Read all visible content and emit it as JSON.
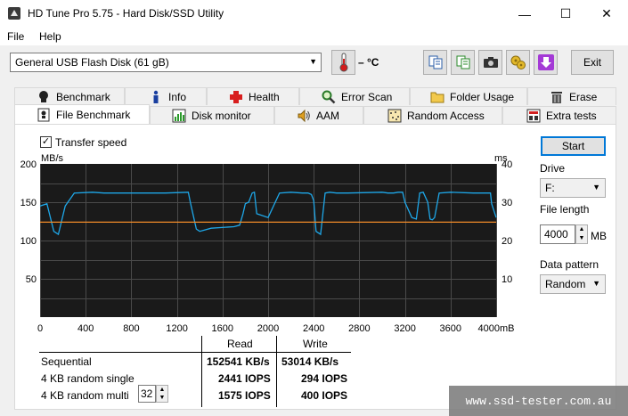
{
  "window": {
    "title": "HD Tune Pro 5.75 - Hard Disk/SSD Utility",
    "minimize": "—",
    "maximize": "☐",
    "close": "✕"
  },
  "menu": {
    "file": "File",
    "help": "Help"
  },
  "toolbar": {
    "drive": "General USB Flash Disk (61 gB)",
    "temperature": "– °C",
    "exit_label": "Exit"
  },
  "tabs_row1": [
    "Benchmark",
    "Info",
    "Health",
    "Error Scan",
    "Folder Usage",
    "Erase"
  ],
  "tabs_row2": [
    "File Benchmark",
    "Disk monitor",
    "AAM",
    "Random Access",
    "Extra tests"
  ],
  "active_tab": "File Benchmark",
  "controls": {
    "transfer_speed_label": "Transfer speed",
    "transfer_speed_checked": true,
    "start_label": "Start",
    "drive_label": "Drive",
    "drive_value": "F:",
    "file_length_label": "File length",
    "file_length_value": "4000",
    "file_length_unit": "MB",
    "data_pattern_label": "Data pattern",
    "data_pattern_value": "Random"
  },
  "chart_data": {
    "type": "line",
    "y_left_unit": "MB/s",
    "y_right_unit": "ms",
    "x_unit": "mB",
    "ylim_left": [
      0,
      200
    ],
    "ylim_right": [
      0,
      40
    ],
    "xlim": [
      0,
      4000
    ],
    "y_left_ticks": [
      50,
      100,
      150,
      200
    ],
    "y_right_ticks": [
      10,
      20,
      30,
      40
    ],
    "x_ticks": [
      0,
      400,
      800,
      1200,
      1600,
      2000,
      2400,
      2800,
      3200,
      3600,
      4000
    ],
    "grid": true,
    "series": [
      {
        "color": "#1ea7e8",
        "x": [
          0,
          60,
          120,
          160,
          220,
          300,
          460,
          560,
          1100,
          1300,
          1320,
          1370,
          1400,
          1500,
          1700,
          1750,
          1780,
          1800,
          1830,
          1860,
          1880,
          1900,
          2000,
          2100,
          2200,
          2300,
          2350,
          2380,
          2400,
          2420,
          2460,
          2500,
          2540,
          2600,
          2700,
          3000,
          3050,
          3100,
          3140,
          3180,
          3200,
          3260,
          3300,
          3330,
          3360,
          3400,
          3420,
          3440,
          3460,
          3500,
          3600,
          3800,
          3950,
          3960,
          4000
        ],
        "values": [
          145,
          148,
          112,
          108,
          145,
          162,
          163,
          162,
          162,
          163,
          148,
          115,
          112,
          116,
          118,
          120,
          135,
          148,
          150,
          162,
          163,
          135,
          130,
          162,
          163,
          162,
          162,
          160,
          152,
          112,
          108,
          162,
          163,
          162,
          162,
          163,
          162,
          162,
          163,
          163,
          150,
          130,
          128,
          162,
          163,
          150,
          128,
          127,
          130,
          162,
          163,
          162,
          162,
          148,
          130
        ]
      },
      {
        "color": "#f28c28",
        "x": [
          0,
          4000
        ],
        "values": [
          124,
          124
        ]
      }
    ]
  },
  "results": {
    "col_read": "Read",
    "col_write": "Write",
    "rows": [
      {
        "label": "Sequential",
        "read": "152541 KB/s",
        "write": "53014 KB/s"
      },
      {
        "label": "4 KB random single",
        "read": "2441 IOPS",
        "write": "294 IOPS"
      },
      {
        "label": "4 KB random multi",
        "read": "1575 IOPS",
        "write": "400 IOPS"
      }
    ],
    "queue_depth": "32"
  },
  "watermark": "www.ssd-tester.com.au"
}
